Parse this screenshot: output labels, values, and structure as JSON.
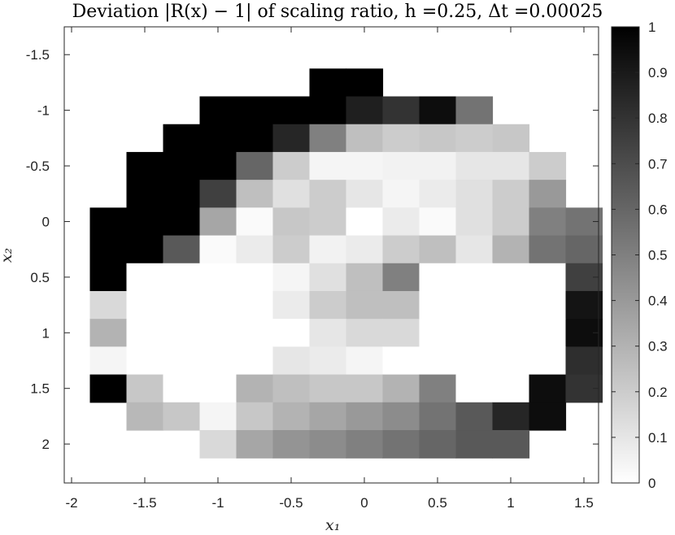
{
  "chart_data": {
    "type": "heatmap",
    "title": "Deviation |R(x) − 1| of scaling ratio, h =0.25, Δt =0.00025",
    "xlabel": "x₁",
    "ylabel": "x₂",
    "xlim": [
      -2.05,
      1.6
    ],
    "ylim": [
      -1.75,
      2.35
    ],
    "y_reversed": true,
    "x_ticks": [
      "-2",
      "-1.5",
      "-1",
      "-0.5",
      "0",
      "0.5",
      "1",
      "1.5"
    ],
    "y_ticks": [
      "-1.5",
      "-1",
      "-0.5",
      "0",
      "0.5",
      "1",
      "1.5",
      "2"
    ],
    "colorbar_ticks": [
      "0",
      "0.1",
      "0.2",
      "0.3",
      "0.4",
      "0.5",
      "0.6",
      "0.7",
      "0.8",
      "0.9",
      "1"
    ],
    "colormap": "gray-reversed",
    "clim": [
      0,
      1
    ],
    "cell_size": 0.25,
    "x_centers": [
      -1.75,
      -1.5,
      -1.25,
      -1.0,
      -0.75,
      -0.5,
      -0.25,
      0.0,
      0.25,
      0.5,
      0.75,
      1.0,
      1.25,
      1.5
    ],
    "y_centers": [
      -1.25,
      -1.0,
      -0.75,
      -0.5,
      -0.25,
      0.0,
      0.25,
      0.5,
      0.75,
      1.0,
      1.25,
      1.5,
      1.75,
      2.0
    ],
    "values": [
      [
        null,
        null,
        null,
        null,
        null,
        null,
        1.0,
        1.0,
        null,
        null,
        null,
        null,
        null,
        null
      ],
      [
        null,
        null,
        null,
        1.0,
        1.0,
        1.0,
        1.0,
        0.88,
        0.8,
        0.95,
        0.55,
        null,
        null,
        null
      ],
      [
        null,
        null,
        1.0,
        1.0,
        1.0,
        0.85,
        0.5,
        0.25,
        0.2,
        0.22,
        0.2,
        0.22,
        null,
        null
      ],
      [
        null,
        1.0,
        1.0,
        1.0,
        0.6,
        0.2,
        0.04,
        0.04,
        0.05,
        0.05,
        0.1,
        0.1,
        0.2,
        null
      ],
      [
        null,
        1.0,
        1.0,
        0.75,
        0.25,
        0.12,
        0.2,
        0.1,
        0.04,
        0.08,
        0.12,
        0.2,
        0.4,
        null
      ],
      [
        1.0,
        1.0,
        1.0,
        0.35,
        0.02,
        0.22,
        0.2,
        0.0,
        0.08,
        0.02,
        0.12,
        0.2,
        0.5,
        0.55
      ],
      [
        1.0,
        1.0,
        0.65,
        0.02,
        0.08,
        0.2,
        0.05,
        0.08,
        0.2,
        0.25,
        0.1,
        0.3,
        0.55,
        0.6
      ],
      [
        1.0,
        0.0,
        0.0,
        0.0,
        0.0,
        0.04,
        0.12,
        0.25,
        0.5,
        0.0,
        0.0,
        0.0,
        0.0,
        0.75
      ],
      [
        0.15,
        0.0,
        0.0,
        0.0,
        0.0,
        0.08,
        0.2,
        0.25,
        0.25,
        0.0,
        0.0,
        0.0,
        0.0,
        0.92
      ],
      [
        0.3,
        0.0,
        0.0,
        0.0,
        0.0,
        0.0,
        0.1,
        0.15,
        0.15,
        0.0,
        0.0,
        0.0,
        0.0,
        0.95
      ],
      [
        0.04,
        0.0,
        0.0,
        0.0,
        0.0,
        0.1,
        0.08,
        0.04,
        0.0,
        0.0,
        0.0,
        0.0,
        0.0,
        0.82
      ],
      [
        1.0,
        0.22,
        0.0,
        0.0,
        0.3,
        0.25,
        0.22,
        0.22,
        0.3,
        0.5,
        0.0,
        0.0,
        0.95,
        0.8
      ],
      [
        null,
        0.28,
        0.22,
        0.04,
        0.22,
        0.3,
        0.35,
        0.4,
        0.45,
        0.55,
        0.65,
        0.85,
        0.95,
        null
      ],
      [
        null,
        null,
        null,
        0.15,
        0.35,
        0.42,
        0.45,
        0.5,
        0.55,
        0.6,
        0.65,
        0.65,
        null,
        null
      ]
    ]
  }
}
